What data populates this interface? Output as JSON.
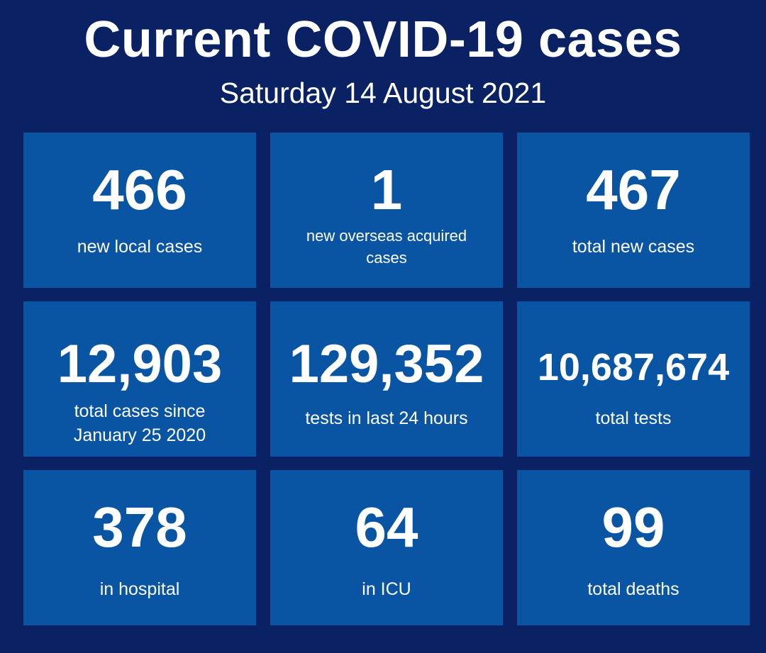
{
  "header": {
    "title": "Current COVID-19 cases",
    "date": "Saturday 14 August 2021"
  },
  "stats": [
    {
      "value": "466",
      "label": "new local cases"
    },
    {
      "value": "1",
      "label": "new overseas acquired cases"
    },
    {
      "value": "467",
      "label": "total new cases"
    },
    {
      "value": "12,903",
      "label": "total cases since January 25 2020"
    },
    {
      "value": "129,352",
      "label": "tests in last 24 hours"
    },
    {
      "value": "10,687,674",
      "label": "total tests"
    },
    {
      "value": "378",
      "label": "in hospital"
    },
    {
      "value": "64",
      "label": "in ICU"
    },
    {
      "value": "99",
      "label": "total deaths"
    }
  ],
  "colors": {
    "background": "#0a2263",
    "tile": "#0955a3",
    "text": "#ffffff"
  }
}
